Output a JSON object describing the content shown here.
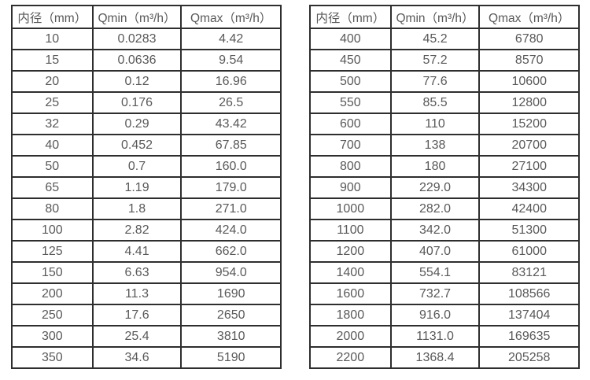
{
  "colors": {
    "background": "#ffffff",
    "table_border": "#2e2e2e",
    "text": "#595959"
  },
  "tables": [
    {
      "name": "flow-rates-dn10-dn350",
      "headers": [
        "内径（mm）",
        "Qmin（m³/h）",
        "Qmax（m³/h）"
      ],
      "rows": [
        [
          "10",
          "0.0283",
          "4.42"
        ],
        [
          "15",
          "0.0636",
          "9.54"
        ],
        [
          "20",
          "0.12",
          "16.96"
        ],
        [
          "25",
          "0.176",
          "26.5"
        ],
        [
          "32",
          "0.29",
          "43.42"
        ],
        [
          "40",
          "0.452",
          "67.85"
        ],
        [
          "50",
          "0.7",
          "160.0"
        ],
        [
          "65",
          "1.19",
          "179.0"
        ],
        [
          "80",
          "1.8",
          "271.0"
        ],
        [
          "100",
          "2.82",
          "424.0"
        ],
        [
          "125",
          "4.41",
          "662.0"
        ],
        [
          "150",
          "6.63",
          "954.0"
        ],
        [
          "200",
          "11.3",
          "1690"
        ],
        [
          "250",
          "17.6",
          "2650"
        ],
        [
          "300",
          "25.4",
          "3810"
        ],
        [
          "350",
          "34.6",
          "5190"
        ]
      ]
    },
    {
      "name": "flow-rates-dn400-dn2200",
      "headers": [
        "内径（mm）",
        "Qmin（m³/h）",
        "Qmax（m³/h）"
      ],
      "rows": [
        [
          "400",
          "45.2",
          "6780"
        ],
        [
          "450",
          "57.2",
          "8570"
        ],
        [
          "500",
          "77.6",
          "10600"
        ],
        [
          "550",
          "85.5",
          "12800"
        ],
        [
          "600",
          "110",
          "15200"
        ],
        [
          "700",
          "138",
          "20700"
        ],
        [
          "800",
          "180",
          "27100"
        ],
        [
          "900",
          "229.0",
          "34300"
        ],
        [
          "1000",
          "282.0",
          "42400"
        ],
        [
          "1100",
          "342.0",
          "51300"
        ],
        [
          "1200",
          "407.0",
          "61000"
        ],
        [
          "1400",
          "554.1",
          "83121"
        ],
        [
          "1600",
          "732.7",
          "108566"
        ],
        [
          "1800",
          "916.0",
          "137404"
        ],
        [
          "2000",
          "1131.0",
          "169635"
        ],
        [
          "2200",
          "1368.4",
          "205258"
        ]
      ]
    }
  ]
}
